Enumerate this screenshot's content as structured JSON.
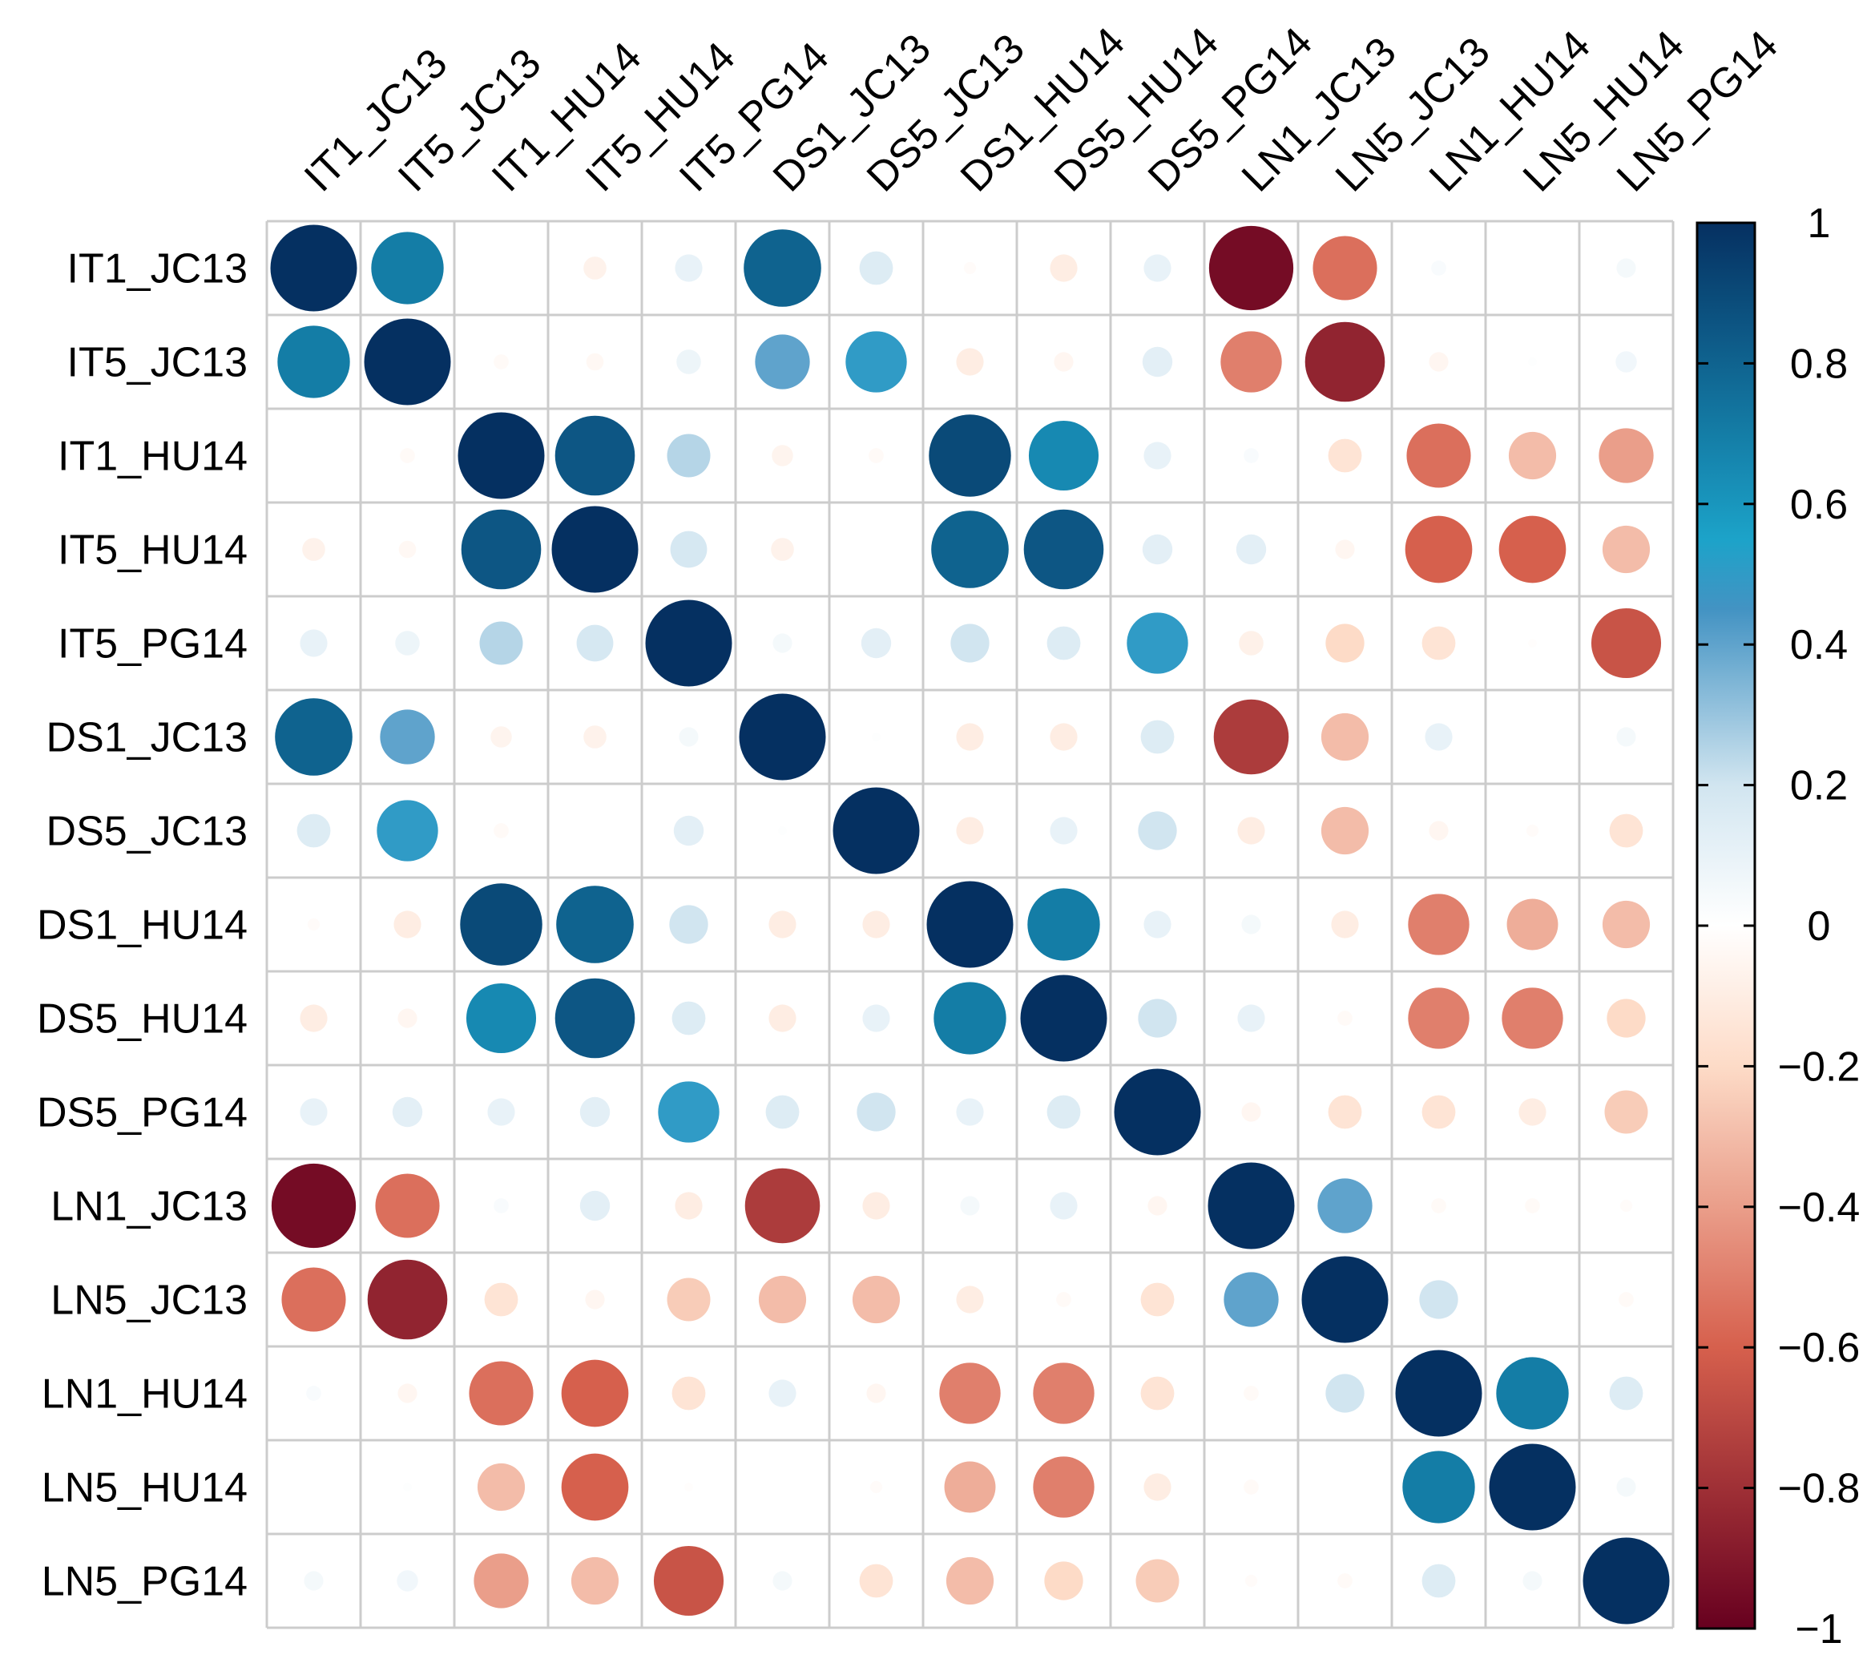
{
  "chart_data": {
    "type": "heatmap",
    "rows": [
      "IT1_JC13",
      "IT5_JC13",
      "IT1_HU14",
      "IT5_HU14",
      "IT5_PG14",
      "DS1_JC13",
      "DS5_JC13",
      "DS1_HU14",
      "DS5_HU14",
      "DS5_PG14",
      "LN1_JC13",
      "LN5_JC13",
      "LN1_HU14",
      "LN5_HU14",
      "LN5_PG14"
    ],
    "columns": [
      "IT1_JC13",
      "IT5_JC13",
      "IT1_HU14",
      "IT5_HU14",
      "IT5_PG14",
      "DS1_JC13",
      "DS5_JC13",
      "DS1_HU14",
      "DS5_HU14",
      "DS5_PG14",
      "LN1_JC13",
      "LN5_JC13",
      "LN1_HU14",
      "LN5_HU14",
      "LN5_PG14"
    ],
    "values": [
      [
        1.0,
        0.7,
        0.0,
        -0.07,
        0.1,
        0.8,
        0.15,
        -0.02,
        -0.1,
        0.1,
        -0.95,
        -0.55,
        0.03,
        0.0,
        0.05
      ],
      [
        0.7,
        1.0,
        -0.03,
        -0.04,
        0.08,
        0.4,
        0.5,
        -0.1,
        -0.05,
        0.12,
        -0.5,
        -0.85,
        -0.05,
        0.01,
        0.06
      ],
      [
        0.0,
        -0.03,
        1.0,
        0.85,
        0.25,
        -0.06,
        -0.03,
        0.9,
        0.65,
        0.1,
        0.03,
        -0.15,
        -0.55,
        -0.3,
        -0.4
      ],
      [
        -0.07,
        -0.04,
        0.85,
        1.0,
        0.18,
        -0.07,
        0.0,
        0.8,
        0.85,
        0.12,
        0.12,
        -0.05,
        -0.6,
        -0.6,
        -0.3
      ],
      [
        0.1,
        0.08,
        0.25,
        0.18,
        1.0,
        0.05,
        0.12,
        0.2,
        0.15,
        0.5,
        -0.08,
        -0.2,
        -0.15,
        -0.01,
        -0.65
      ],
      [
        0.8,
        0.4,
        -0.06,
        -0.07,
        0.05,
        1.0,
        0.01,
        -0.1,
        -0.1,
        0.15,
        -0.75,
        -0.3,
        0.1,
        0.0,
        0.05
      ],
      [
        0.15,
        0.5,
        -0.03,
        0.0,
        0.12,
        0.01,
        1.0,
        -0.1,
        0.1,
        0.2,
        -0.1,
        -0.3,
        -0.05,
        -0.02,
        -0.15
      ],
      [
        -0.02,
        -0.1,
        0.9,
        0.8,
        0.2,
        -0.1,
        -0.1,
        1.0,
        0.7,
        0.1,
        0.05,
        -0.1,
        -0.5,
        -0.35,
        -0.3
      ],
      [
        -0.1,
        -0.05,
        0.65,
        0.85,
        0.15,
        -0.1,
        0.1,
        0.7,
        1.0,
        0.2,
        0.1,
        -0.03,
        -0.5,
        -0.5,
        -0.2
      ],
      [
        0.1,
        0.12,
        0.1,
        0.12,
        0.5,
        0.15,
        0.2,
        0.1,
        0.15,
        1.0,
        -0.05,
        -0.15,
        -0.15,
        -0.1,
        -0.25
      ],
      [
        -0.95,
        -0.55,
        0.03,
        0.12,
        -0.1,
        -0.75,
        -0.1,
        0.05,
        0.1,
        -0.05,
        1.0,
        0.4,
        -0.03,
        -0.03,
        -0.02
      ],
      [
        -0.55,
        -0.85,
        -0.15,
        -0.05,
        -0.25,
        -0.3,
        -0.3,
        -0.1,
        -0.03,
        -0.15,
        0.4,
        1.0,
        0.2,
        0.0,
        -0.03
      ],
      [
        0.03,
        -0.05,
        -0.55,
        -0.6,
        -0.15,
        0.1,
        -0.05,
        -0.5,
        -0.5,
        -0.15,
        -0.03,
        0.2,
        1.0,
        0.7,
        0.15
      ],
      [
        0.0,
        0.01,
        -0.3,
        -0.6,
        -0.01,
        0.0,
        -0.02,
        -0.35,
        -0.5,
        -0.1,
        -0.03,
        0.0,
        0.7,
        1.0,
        0.05
      ],
      [
        0.05,
        0.06,
        -0.4,
        -0.3,
        -0.65,
        0.05,
        -0.15,
        -0.3,
        -0.2,
        -0.25,
        -0.02,
        -0.03,
        0.15,
        0.05,
        1.0
      ]
    ],
    "value_range": [
      -1,
      1
    ],
    "colorbar": {
      "ticks": [
        1,
        0.8,
        0.6,
        0.4,
        0.2,
        0,
        -0.2,
        -0.4,
        -0.6,
        -0.8,
        -1
      ],
      "tick_labels": [
        "1",
        "0.8",
        "0.6",
        "0.4",
        "0.2",
        "0",
        "−0.2",
        "−0.4",
        "−0.6",
        "−0.8",
        "−1"
      ],
      "position": "right"
    },
    "colors": {
      "neg_strong": "#67001f",
      "neg_mid": "#d6604d",
      "neg_light": "#fddbc7",
      "zero": "#ffffff",
      "pos_light": "#d1e5f0",
      "pos_mid": "#4393c3",
      "pos_mid2": "#1ca3c9",
      "pos_strong": "#053061"
    },
    "grid": true,
    "legend": "right"
  }
}
